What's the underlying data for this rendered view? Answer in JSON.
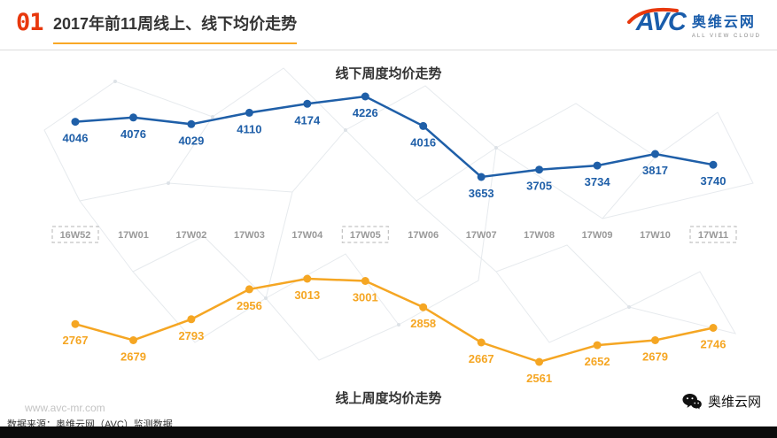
{
  "header": {
    "index": "01",
    "title": "2017年前11周线上、线下均价走势"
  },
  "logo": {
    "brand": "AVC",
    "name": "奥维云网",
    "tagline": "ALL VIEW CLOUD"
  },
  "chart_data": {
    "type": "line",
    "categories": [
      "16W52",
      "17W01",
      "17W02",
      "17W03",
      "17W04",
      "17W05",
      "17W06",
      "17W07",
      "17W08",
      "17W09",
      "17W10",
      "17W11"
    ],
    "series": [
      {
        "key": "offline",
        "name": "线下周度均价走势",
        "color": "#1f5fa8",
        "values": [
          4046,
          4076,
          4029,
          4110,
          4174,
          4226,
          4016,
          3653,
          3705,
          3734,
          3817,
          3740
        ]
      },
      {
        "key": "online",
        "name": "线上周度均价走势",
        "color": "#f5a623",
        "values": [
          2767,
          2679,
          2793,
          2956,
          3013,
          3001,
          2858,
          2667,
          2561,
          2652,
          2679,
          2746
        ]
      }
    ],
    "highlighted_categories": [
      "16W52",
      "17W05",
      "17W11"
    ],
    "legend_position": "none",
    "grid": false,
    "data_labels": true
  },
  "footer": {
    "website": "www.avc-mr.com",
    "source": "数据来源：奥维云网（AVC）监测数据",
    "wechat_name": "奥维云网"
  }
}
